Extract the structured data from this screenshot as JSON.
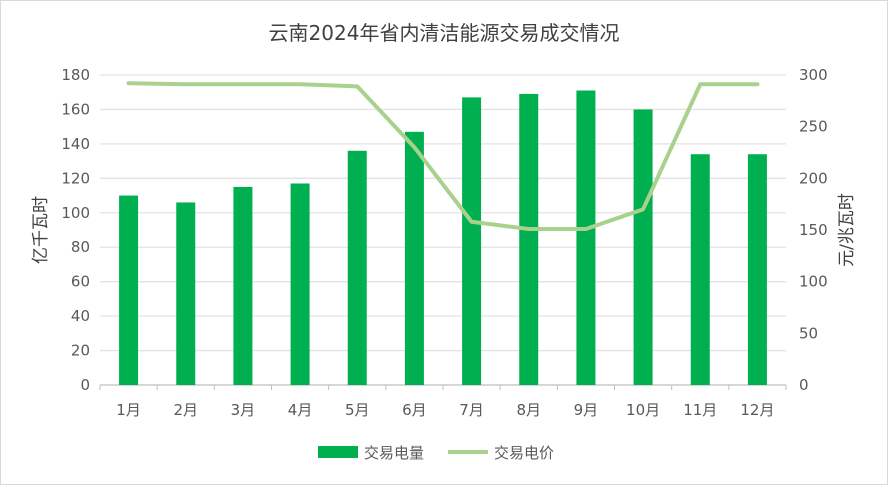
{
  "chart_data": {
    "type": "bar+line",
    "title": "云南2024年省内清洁能源交易成交情况",
    "categories": [
      "1月",
      "2月",
      "3月",
      "4月",
      "5月",
      "6月",
      "7月",
      "8月",
      "9月",
      "10月",
      "11月",
      "12月"
    ],
    "series": [
      {
        "name": "交易电量",
        "type": "bar",
        "axis": "left",
        "color": "#00b050",
        "values": [
          110,
          106,
          115,
          117,
          136,
          147,
          167,
          169,
          171,
          160,
          134,
          134
        ]
      },
      {
        "name": "交易电价",
        "type": "line",
        "axis": "right",
        "color": "#a9d18e",
        "values": [
          292,
          291,
          291,
          291,
          289,
          230,
          158,
          151,
          151,
          170,
          291,
          291
        ]
      }
    ],
    "ylabel": "亿千瓦时",
    "y2label": "元/兆瓦时",
    "ylim": [
      0,
      180
    ],
    "y2lim": [
      0,
      300
    ],
    "yticks": [
      0,
      20,
      40,
      60,
      80,
      100,
      120,
      140,
      160,
      180
    ],
    "y2ticks": [
      0,
      50,
      100,
      150,
      200,
      250,
      300
    ],
    "grid": true,
    "legend": "bottom"
  }
}
